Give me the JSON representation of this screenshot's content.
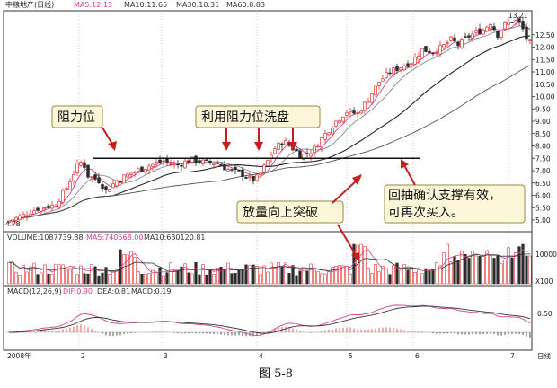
{
  "chart_data": {
    "type": "candlestick",
    "title": "中粮地产(日线)",
    "x_ticks": [
      "2008年",
      "2",
      "3",
      "4",
      "5",
      "6",
      "7",
      "日线"
    ],
    "price_panel": {
      "ma_legend": [
        {
          "label": "MA5:12.13",
          "color": "#d04090"
        },
        {
          "label": "MA10:11.65",
          "color": "#333333"
        },
        {
          "label": "MA30:10.31",
          "color": "#333333"
        },
        {
          "label": "MA60:8.83",
          "color": "#333333"
        }
      ],
      "y_ticks": [
        12.5,
        12.0,
        11.5,
        11.0,
        10.5,
        10.0,
        9.5,
        9.0,
        8.5,
        8.0,
        7.5,
        7.0,
        6.5,
        6.0,
        5.5,
        5.0
      ],
      "y_range": [
        4.6,
        13.4
      ],
      "high_label": "13.21",
      "low_label": "4.78",
      "resistance_level": 7.5
    },
    "volume_panel": {
      "legend": [
        {
          "label": "VOLUME:1087739.88",
          "color": "#333333"
        },
        {
          "label": "MA5:740568.00",
          "color": "#d04090"
        },
        {
          "label": "MA10:630120.81",
          "color": "#333333"
        }
      ],
      "y_tick": "10000",
      "unit": "X100"
    },
    "macd_panel": {
      "legend": [
        {
          "label": "MACD(12,26,9)",
          "color": "#333333"
        },
        {
          "label": "DIF:0.90",
          "color": "#d04090"
        },
        {
          "label": "DEA:0.81",
          "color": "#333333"
        },
        {
          "label": "MACD:0.19",
          "color": "#333333"
        }
      ],
      "y_tick": "0.50"
    }
  },
  "annotations": {
    "resistance": "阻力位",
    "wash": "利用阻力位洗盘",
    "breakout": "放量向上突破",
    "pullback_line1": "回抽确认支撑有效，",
    "pullback_line2": "可再次买入。"
  },
  "caption": "图 5-8",
  "colors": {
    "up": "#e23030",
    "down": "#2b2b2b",
    "ma5": "#d04090",
    "line": "#333333"
  }
}
